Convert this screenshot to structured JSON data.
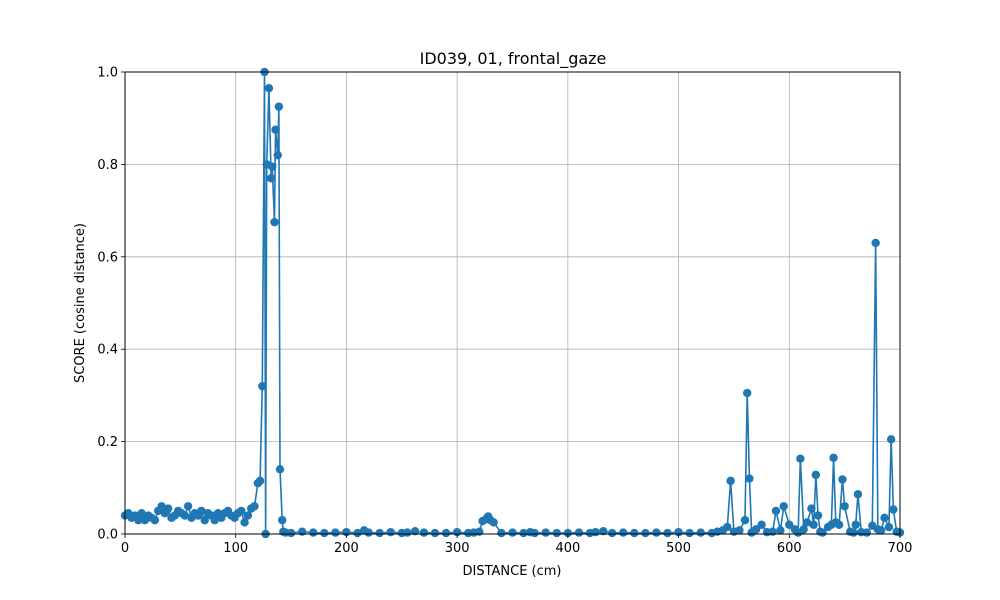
{
  "chart_data": {
    "type": "line",
    "title": "ID039, 01, frontal_gaze",
    "xlabel": "DISTANCE (cm)",
    "ylabel": "SCORE (cosine distance)",
    "xlim": [
      0,
      700
    ],
    "ylim": [
      0,
      1.0
    ],
    "xticks": [
      0,
      100,
      200,
      300,
      400,
      500,
      600,
      700
    ],
    "xtick_labels": [
      "0",
      "100",
      "200",
      "300",
      "400",
      "500",
      "600",
      "700"
    ],
    "yticks": [
      0,
      0.2,
      0.4,
      0.6,
      0.8,
      1.0
    ],
    "ytick_labels": [
      "0.0",
      "0.2",
      "0.4",
      "0.6",
      "0.8",
      "1.0"
    ],
    "grid": true,
    "marker": "circle",
    "color": "#1f77b4",
    "series": [
      {
        "x": [
          0,
          3,
          6,
          9,
          12,
          15,
          18,
          21,
          24,
          27,
          30,
          33,
          36,
          39,
          42,
          45,
          48,
          51,
          54,
          57,
          60,
          63,
          66,
          69,
          72,
          75,
          78,
          81,
          84,
          87,
          90,
          93,
          96,
          99,
          102,
          105,
          108,
          111,
          114,
          117,
          120,
          122,
          124,
          126,
          127,
          128,
          130,
          132,
          133,
          135,
          136,
          138,
          139,
          140,
          142,
          143,
          145,
          150,
          160,
          170,
          180,
          190,
          200,
          210,
          216,
          220,
          230,
          240,
          250,
          255,
          262,
          270,
          280,
          290,
          300,
          310,
          315,
          320,
          323,
          326,
          328,
          330,
          333,
          340,
          350,
          360,
          366,
          370,
          380,
          390,
          400,
          410,
          420,
          425,
          432,
          440,
          450,
          460,
          470,
          480,
          490,
          500,
          510,
          520,
          530,
          535,
          540,
          544,
          547,
          550,
          555,
          560,
          562,
          564,
          566,
          570,
          575,
          580,
          585,
          588,
          592,
          595,
          600,
          605,
          608,
          610,
          613,
          616,
          620,
          622,
          624,
          626,
          628,
          630,
          635,
          638,
          640,
          642,
          645,
          648,
          650,
          655,
          658,
          660,
          662,
          665,
          670,
          675,
          678,
          680,
          683,
          686,
          690,
          692,
          694,
          697,
          700
        ],
        "y": [
          0.04,
          0.045,
          0.035,
          0.04,
          0.03,
          0.045,
          0.03,
          0.04,
          0.035,
          0.03,
          0.05,
          0.06,
          0.045,
          0.055,
          0.035,
          0.04,
          0.05,
          0.045,
          0.04,
          0.06,
          0.035,
          0.045,
          0.04,
          0.05,
          0.03,
          0.045,
          0.04,
          0.03,
          0.045,
          0.035,
          0.045,
          0.05,
          0.04,
          0.035,
          0.045,
          0.05,
          0.025,
          0.04,
          0.055,
          0.06,
          0.11,
          0.115,
          0.32,
          1.0,
          0.0,
          0.8,
          0.965,
          0.77,
          0.795,
          0.675,
          0.875,
          0.82,
          0.925,
          0.14,
          0.03,
          0.005,
          0.003,
          0.002,
          0.005,
          0.003,
          0.002,
          0.003,
          0.004,
          0.002,
          0.008,
          0.003,
          0.002,
          0.004,
          0.002,
          0.003,
          0.006,
          0.003,
          0.002,
          0.002,
          0.004,
          0.002,
          0.003,
          0.005,
          0.028,
          0.032,
          0.038,
          0.03,
          0.025,
          0.002,
          0.003,
          0.002,
          0.004,
          0.002,
          0.003,
          0.002,
          0.002,
          0.003,
          0.002,
          0.004,
          0.006,
          0.002,
          0.003,
          0.002,
          0.002,
          0.003,
          0.002,
          0.004,
          0.002,
          0.003,
          0.002,
          0.005,
          0.008,
          0.015,
          0.115,
          0.005,
          0.008,
          0.03,
          0.305,
          0.12,
          0.003,
          0.01,
          0.02,
          0.004,
          0.005,
          0.05,
          0.008,
          0.06,
          0.02,
          0.01,
          0.003,
          0.163,
          0.01,
          0.025,
          0.055,
          0.02,
          0.128,
          0.04,
          0.005,
          0.003,
          0.015,
          0.02,
          0.165,
          0.025,
          0.02,
          0.118,
          0.06,
          0.005,
          0.003,
          0.02,
          0.086,
          0.004,
          0.003,
          0.018,
          0.63,
          0.01,
          0.008,
          0.035,
          0.015,
          0.205,
          0.053,
          0.005,
          0.003
        ]
      }
    ]
  }
}
